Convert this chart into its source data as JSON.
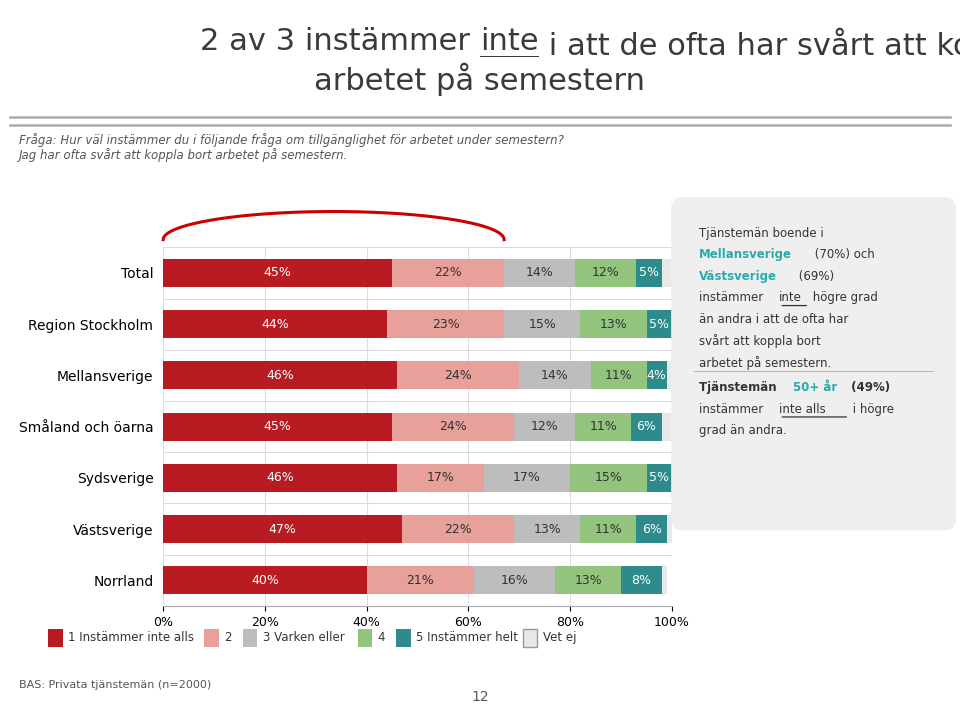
{
  "title_pre": "2 av 3 instämmer ",
  "title_inte": "inte",
  "title_post": " i att de ofta har svårt att koppla bort",
  "title_line2": "arbetet på semestern",
  "subtitle1": "Fråga: Hur väl instämmer du i följande fråga om tillgänglighet för arbetet under semestern?",
  "subtitle2": "Jag har ofta svårt att koppla bort arbetet på semestern.",
  "categories": [
    "Total",
    "Region Stockholm",
    "Mellansverige",
    "Småland och öarna",
    "Sydsverige",
    "Västsverige",
    "Norrland"
  ],
  "series": {
    "1 Instämmer inte alls": [
      45,
      44,
      46,
      45,
      46,
      47,
      40
    ],
    "2": [
      22,
      23,
      24,
      24,
      17,
      22,
      21
    ],
    "3 Varken eller": [
      14,
      15,
      14,
      12,
      17,
      13,
      16
    ],
    "4": [
      12,
      13,
      11,
      11,
      15,
      11,
      13
    ],
    "5 Instämmer helt": [
      5,
      5,
      4,
      6,
      5,
      6,
      8
    ],
    "Vet ej": [
      2,
      1,
      1,
      2,
      0,
      1,
      1
    ]
  },
  "colors": {
    "1 Instämmer inte alls": "#b81c22",
    "2": "#e8a09a",
    "3 Varken eller": "#bdbdbd",
    "4": "#93c47d",
    "5 Instämmer helt": "#2e8b8b",
    "Vet ej": "#e8e8e8"
  },
  "bas_text": "BAS: Privata tjänstemän (n=2000)",
  "page_number": "12",
  "xlim": [
    0,
    100
  ],
  "bar_height": 0.55,
  "background_color": "#ffffff",
  "grid_color": "#dddddd",
  "title_fontsize": 22,
  "subtitle_fontsize": 8.5,
  "bar_label_fontsize": 9,
  "legend_fontsize": 8.5,
  "ann_fontsize": 8.5,
  "cyan_color": "#2aabab",
  "dark_text": "#3a3a3a",
  "mid_text": "#555555",
  "light_gray": "#aaaaaa",
  "sep_color": "#cccccc"
}
